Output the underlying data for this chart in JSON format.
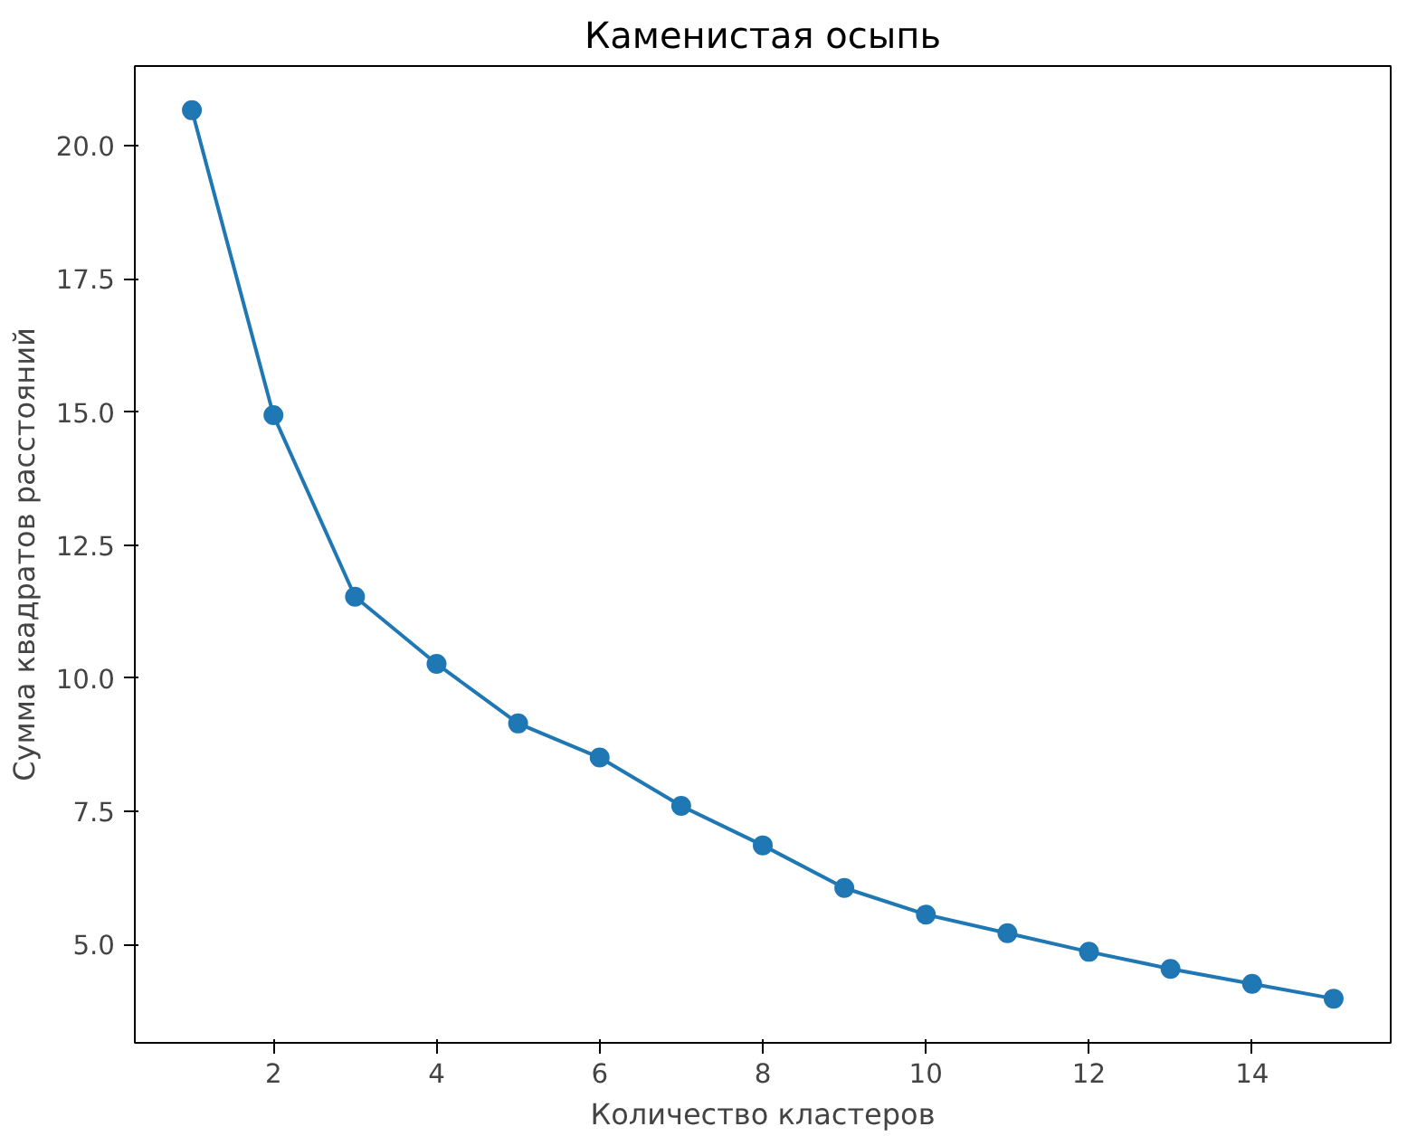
{
  "chart_data": {
    "type": "line",
    "title": "Каменистая осыпь",
    "xlabel": "Количество кластеров",
    "ylabel": "Сумма квадратов расстояний",
    "x": [
      1,
      2,
      3,
      4,
      5,
      6,
      7,
      8,
      9,
      10,
      11,
      12,
      13,
      14,
      15
    ],
    "series": [
      {
        "color": "#1f77b4",
        "values": [
          20.67,
          14.94,
          11.53,
          10.27,
          9.15,
          8.51,
          7.6,
          6.86,
          6.06,
          5.56,
          5.21,
          4.86,
          4.54,
          4.26,
          3.98
        ]
      }
    ],
    "xlim": [
      0.3,
      15.7
    ],
    "ylim": [
      3.15,
      21.5
    ],
    "xticks": [
      2,
      4,
      6,
      8,
      10,
      12,
      14
    ],
    "yticks": [
      {
        "value": 5,
        "label": "5.0"
      },
      7.5,
      {
        "value": 10,
        "label": "10.0"
      },
      12.5,
      {
        "value": 15,
        "label": "15.0"
      },
      17.5,
      {
        "value": 20,
        "label": "20.0"
      }
    ],
    "marker": "circle",
    "line_style": "solid",
    "grid": false
  }
}
